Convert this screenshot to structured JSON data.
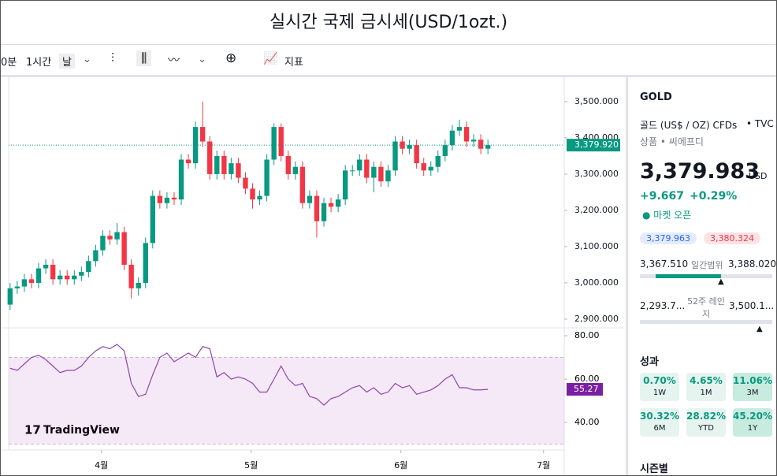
{
  "header": {
    "title": "실시간 국제 금시세(USD/1ozt.)"
  },
  "toolbar": {
    "intervals": [
      "0분",
      "1시간",
      "날"
    ],
    "indicators": "지표"
  },
  "chart_data": {
    "type": "candlestick",
    "watermark": "TradingView",
    "colors": {
      "up": "#089981",
      "down": "#f23645",
      "rsi": "#8e44ad"
    },
    "open": [
      2940,
      2985,
      2990,
      3010,
      3000,
      3040,
      3050,
      3010,
      3020,
      3010,
      3020,
      3030,
      3060,
      3090,
      3130,
      3120,
      3140,
      3050,
      2985,
      3000,
      3110,
      3240,
      3220,
      3235,
      3230,
      3340,
      3330,
      3430,
      3390,
      3300,
      3350,
      3300,
      3330,
      3290,
      3260,
      3230,
      3240,
      3340,
      3430,
      3350,
      3300,
      3320,
      3220,
      3240,
      3170,
      3220,
      3210,
      3230,
      3310,
      3310,
      3340,
      3290,
      3320,
      3280,
      3310,
      3390,
      3370,
      3380,
      3330,
      3310,
      3320,
      3350,
      3380,
      3420,
      3430,
      3390,
      3395,
      3370
    ],
    "high": [
      3000,
      3005,
      3025,
      3025,
      3055,
      3065,
      3065,
      3035,
      3035,
      3035,
      3045,
      3075,
      3105,
      3145,
      3145,
      3165,
      3155,
      3065,
      3015,
      3125,
      3255,
      3255,
      3250,
      3250,
      3355,
      3355,
      3445,
      3500,
      3405,
      3365,
      3365,
      3345,
      3345,
      3305,
      3275,
      3255,
      3355,
      3440,
      3440,
      3365,
      3335,
      3335,
      3255,
      3255,
      3235,
      3235,
      3245,
      3325,
      3325,
      3355,
      3355,
      3335,
      3335,
      3325,
      3405,
      3405,
      3395,
      3395,
      3345,
      3335,
      3365,
      3395,
      3435,
      3450,
      3445,
      3410,
      3410,
      3395
    ],
    "low": [
      2925,
      2970,
      2975,
      2985,
      2985,
      3025,
      2995,
      2995,
      2995,
      2995,
      3005,
      3015,
      3045,
      3075,
      3105,
      3105,
      3035,
      2957,
      2965,
      2985,
      3095,
      3205,
      3205,
      3215,
      3215,
      3315,
      3315,
      3375,
      3285,
      3285,
      3285,
      3285,
      3275,
      3245,
      3205,
      3215,
      3225,
      3325,
      3335,
      3285,
      3285,
      3205,
      3205,
      3125,
      3155,
      3195,
      3195,
      3215,
      3295,
      3295,
      3275,
      3250,
      3265,
      3265,
      3295,
      3355,
      3355,
      3315,
      3295,
      3295,
      3305,
      3335,
      3365,
      3405,
      3375,
      3375,
      3355,
      3355
    ],
    "close": [
      2985,
      2990,
      3010,
      3000,
      3040,
      3050,
      3010,
      3020,
      3010,
      3020,
      3030,
      3060,
      3090,
      3130,
      3120,
      3140,
      3050,
      2985,
      3000,
      3110,
      3240,
      3220,
      3235,
      3230,
      3340,
      3330,
      3430,
      3390,
      3300,
      3350,
      3300,
      3330,
      3290,
      3260,
      3230,
      3240,
      3340,
      3430,
      3350,
      3300,
      3320,
      3220,
      3240,
      3170,
      3220,
      3210,
      3230,
      3310,
      3310,
      3340,
      3290,
      3320,
      3280,
      3310,
      3390,
      3370,
      3380,
      3330,
      3310,
      3320,
      3350,
      3380,
      3420,
      3430,
      3390,
      3395,
      3370,
      3380
    ],
    "xlim": [
      -0.2,
      77.7
    ],
    "xticks": [
      {
        "value": 12.8,
        "label": "4월"
      },
      {
        "value": 33.8,
        "label": "5월"
      },
      {
        "value": 54.8,
        "label": "6월"
      },
      {
        "value": 74.8,
        "label": "7월"
      }
    ],
    "ylim": [
      2876,
      3565
    ],
    "yticks": [
      {
        "value": 2900,
        "label": "2,900.000"
      },
      {
        "value": 3000,
        "label": "3,000.000"
      },
      {
        "value": 3100,
        "label": "3,100.000"
      },
      {
        "value": 3200,
        "label": "3,200.000"
      },
      {
        "value": 3300,
        "label": "3,300.000"
      },
      {
        "value": 3400,
        "label": "3,400.000"
      },
      {
        "value": 3500,
        "label": "3,500.000"
      }
    ],
    "last_price": {
      "value": 3379.92,
      "label": "3,379.920"
    },
    "rsi": {
      "values": [
        65,
        64,
        67,
        70,
        71,
        69,
        66,
        63,
        64,
        64,
        66,
        70,
        73,
        75,
        74,
        76,
        73,
        58,
        52,
        53,
        62,
        70,
        72,
        68,
        70,
        72,
        70,
        75,
        74,
        61,
        63,
        60,
        61,
        60,
        58,
        54,
        54,
        60,
        66,
        60,
        57,
        58,
        52,
        51,
        48,
        51,
        52,
        54,
        56,
        57,
        54,
        56,
        53,
        54,
        58,
        56,
        57,
        53,
        54,
        55,
        57,
        60,
        62,
        56,
        56,
        55,
        55,
        55.27
      ],
      "ylim": [
        27.3,
        82.9
      ],
      "band": [
        30,
        70
      ],
      "yticks": [
        {
          "value": 40,
          "label": "40.00"
        },
        {
          "value": 60,
          "label": "60.00"
        },
        {
          "value": 80,
          "label": "80.00"
        }
      ],
      "last_label": "55.27"
    }
  },
  "sidebar": {
    "symbol": "GOLD",
    "description": "골드 (US$ / OZ) CFDs",
    "exchange": "• TVC",
    "category": "상품 • 씨에프디",
    "price": "3,379.983",
    "currency": "USD",
    "change": "+9.667",
    "change_pct": "+0.29%",
    "status": "● 마켓 오픈",
    "bid": "3,379.963",
    "ask": "3,380.324",
    "day_low": "3,367.510",
    "day_range_label": "일간범위",
    "day_high": "3,388.020",
    "year_low": "2,293.7...",
    "year_range_label": "52주 레인지",
    "year_high": "3,500.1...",
    "performance_title": "성과",
    "performance": [
      {
        "value": "0.70%",
        "period": "1W"
      },
      {
        "value": "4.65%",
        "period": "1M"
      },
      {
        "value": "11.06%",
        "period": "3M"
      },
      {
        "value": "30.32%",
        "period": "6M"
      },
      {
        "value": "28.82%",
        "period": "YTD"
      },
      {
        "value": "45.20%",
        "period": "1Y"
      }
    ],
    "seasonal": "시즌별"
  }
}
